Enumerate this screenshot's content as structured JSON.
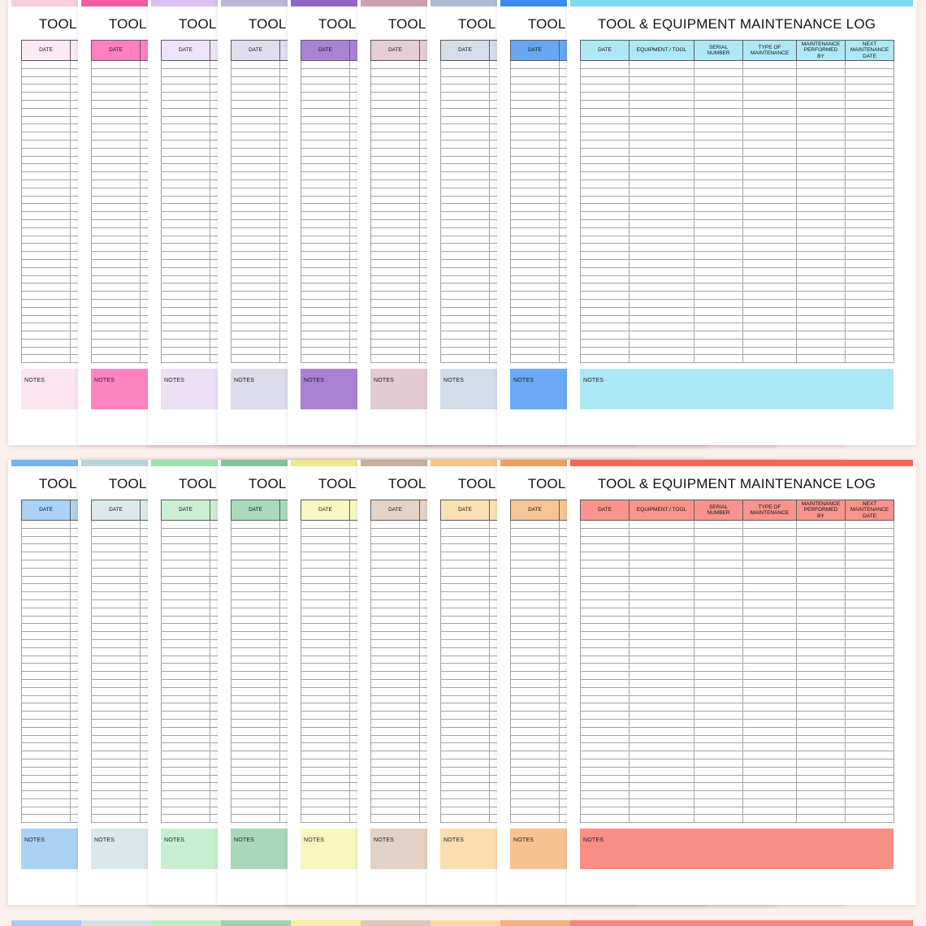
{
  "canvas": {
    "background": "#fcf0ec"
  },
  "sheet": {
    "title": "TOOL & EQUIPMENT MAINTENANCE LOG",
    "columns": [
      "DATE",
      "EQUIPMENT / TOOL",
      "SERIAL\nNUMBER",
      "TYPE OF\nMAINTENANCE",
      "MAINTENANCE\nPERFORMED\nBY",
      "NEXT\nMAINTENANCE\nDATE"
    ],
    "notes_label": "NOTES",
    "body_row_count": 38
  },
  "rows": [
    {
      "strip_only": false,
      "sheets": [
        {
          "name": "pale-pink",
          "strip": "#f8cde2",
          "cell": "#fde8f3",
          "box": "#fce5f1"
        },
        {
          "name": "hot-pink",
          "strip": "#f25ca6",
          "cell": "#ff7fc0",
          "box": "#ff84c2"
        },
        {
          "name": "pale-lavender",
          "strip": "#d9c2ef",
          "cell": "#efe3f9",
          "box": "#ecdff6"
        },
        {
          "name": "gray-lavender",
          "strip": "#b7b7d8",
          "cell": "#dedeed",
          "box": "#dbdbea"
        },
        {
          "name": "purple",
          "strip": "#9265c4",
          "cell": "#aa82d4",
          "box": "#a981d3"
        },
        {
          "name": "mauve",
          "strip": "#c9a2b0",
          "cell": "#e5cdd5",
          "box": "#e3cad3"
        },
        {
          "name": "blue-gray",
          "strip": "#a9bed6",
          "cell": "#d4dee9",
          "box": "#d1dce8"
        },
        {
          "name": "blue",
          "strip": "#3d8bea",
          "cell": "#66a6f3",
          "box": "#6aa9f4"
        },
        {
          "name": "cyan",
          "strip": "#7edcf2",
          "cell": "#aee8f6",
          "box": "#ace7f5"
        }
      ]
    },
    {
      "strip_only": false,
      "sheets": [
        {
          "name": "light-blue",
          "strip": "#79b3ec",
          "cell": "#a9d2f4",
          "box": "#a9d2f4"
        },
        {
          "name": "pale-aqua",
          "strip": "#b8d3da",
          "cell": "#dae9ec",
          "box": "#d8e8eb"
        },
        {
          "name": "light-green",
          "strip": "#9de2ad",
          "cell": "#c9f0d1",
          "box": "#c7efcf"
        },
        {
          "name": "sage-green",
          "strip": "#83c399",
          "cell": "#aad9bb",
          "box": "#a8d8b9"
        },
        {
          "name": "pale-yellow",
          "strip": "#efe78c",
          "cell": "#fbf7c3",
          "box": "#faf6bf"
        },
        {
          "name": "tan",
          "strip": "#c9ae9c",
          "cell": "#e5d3c6",
          "box": "#e3d1c4"
        },
        {
          "name": "peach",
          "strip": "#f5c581",
          "cell": "#fcdfb3",
          "box": "#fbddaf"
        },
        {
          "name": "orange",
          "strip": "#eda05f",
          "cell": "#f7c493",
          "box": "#f6c291"
        },
        {
          "name": "salmon",
          "strip": "#f3675b",
          "cell": "#f9938b",
          "box": "#f98e85"
        }
      ]
    },
    {
      "strip_only": true,
      "sheets": [
        {
          "name": "light-blue-edge",
          "strip": "#a9cdf2"
        },
        {
          "name": "pale-aqua-edge",
          "strip": "#cfe3e8"
        },
        {
          "name": "light-green-edge",
          "strip": "#bceec6"
        },
        {
          "name": "sage-green-edge",
          "strip": "#9ed3b2"
        },
        {
          "name": "pale-yellow-edge",
          "strip": "#f4eda2"
        },
        {
          "name": "tan-edge",
          "strip": "#ddc8b9"
        },
        {
          "name": "peach-edge",
          "strip": "#f9d7a6"
        },
        {
          "name": "orange-edge",
          "strip": "#f2b17d"
        },
        {
          "name": "salmon-edge",
          "strip": "#f7837a"
        }
      ]
    }
  ]
}
